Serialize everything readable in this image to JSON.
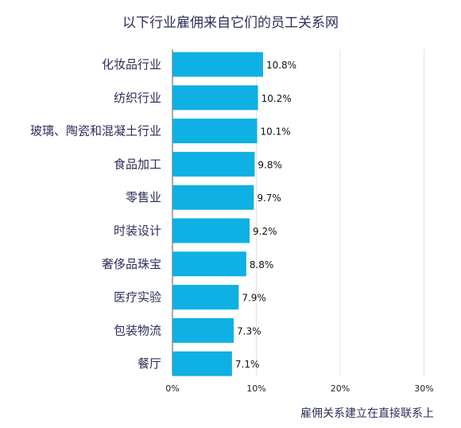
{
  "chart_data": {
    "type": "bar",
    "orientation": "horizontal",
    "title": "以下行业雇佣来自它们的员工关系网",
    "xlabel": "雇佣关系建立在直接联系上",
    "ylabel": "",
    "categories": [
      "化妆品行业",
      "纺织行业",
      "玻璃、陶瓷和混凝土行业",
      "食品加工",
      "零售业",
      "时装设计",
      "奢侈品珠宝",
      "医疗实验",
      "包装物流",
      "餐厅"
    ],
    "values": [
      10.8,
      10.2,
      10.1,
      9.8,
      9.7,
      9.2,
      8.8,
      7.9,
      7.3,
      7.1
    ],
    "value_labels": [
      "10.8%",
      "10.2%",
      "10.1%",
      "9.8%",
      "9.7%",
      "9.2%",
      "8.8%",
      "7.9%",
      "7.3%",
      "7.1%"
    ],
    "xlim": [
      0,
      30
    ],
    "xticks": [
      0,
      10,
      20,
      30
    ],
    "xtick_labels": [
      "0%",
      "10%",
      "20%",
      "30%"
    ],
    "grid": true,
    "legend": "none",
    "colors": {
      "bar": "#0fb0e3",
      "text": "#2c2f58",
      "grid": "#e3e3e3",
      "axis": "#555555"
    }
  }
}
